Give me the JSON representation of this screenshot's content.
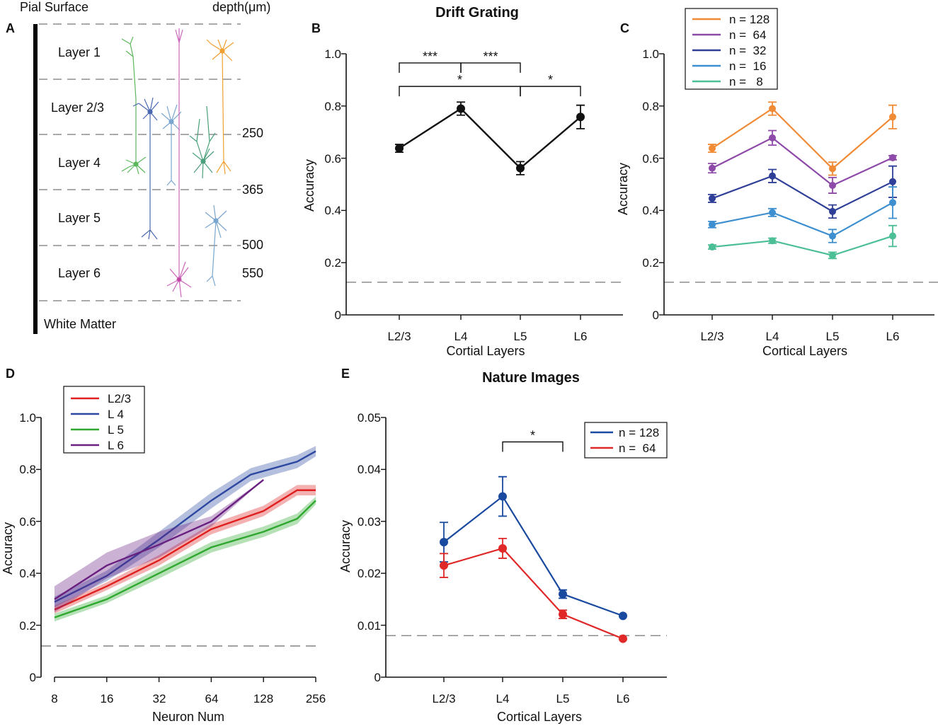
{
  "panel_labels": {
    "A": "A",
    "B": "B",
    "C": "C",
    "D": "D",
    "E": "E"
  },
  "panelA": {
    "pial": "Pial Surface",
    "depth_label": "depth(μm)",
    "white_matter": "White Matter",
    "layers": [
      "Layer 1",
      "Layer 2/3",
      "Layer 4",
      "Layer 5",
      "Layer 6"
    ],
    "depths": [
      "250",
      "365",
      "500",
      "550"
    ],
    "neuron_colors": {
      "green": "#5cb85c",
      "blue": "#4a68b0",
      "lightblue": "#79a6cf",
      "pink": "#cc66bb",
      "orange": "#f0a030",
      "teal": "#4aa07a",
      "magenta": "#c0449a"
    }
  },
  "chart_data": [
    {
      "id": "B",
      "type": "line",
      "title": "Drift Grating",
      "xlabel": "Cortial Layers",
      "ylabel": "Accuracy",
      "categories": [
        "L2/3",
        "L4",
        "L5",
        "L6"
      ],
      "ylim": [
        0,
        1.0
      ],
      "yticks": [
        0,
        0.2,
        0.4,
        0.6,
        0.8,
        1.0
      ],
      "ytick_labels": [
        "0",
        "0.2",
        "0.4",
        "0.6",
        "0.8",
        "1.0"
      ],
      "chance": 0.125,
      "series": [
        {
          "name": "accuracy",
          "color": "#111111",
          "values": [
            0.638,
            0.79,
            0.562,
            0.758
          ],
          "err": [
            0.015,
            0.025,
            0.025,
            0.045
          ]
        }
      ],
      "significance": [
        {
          "from": 0,
          "to": 1,
          "label": "***",
          "y": 0.965
        },
        {
          "from": 1,
          "to": 2,
          "label": "***",
          "y": 0.965
        },
        {
          "from": 0,
          "to": 2,
          "label": "*",
          "y": 0.875
        },
        {
          "from": 2,
          "to": 3,
          "label": "*",
          "y": 0.875
        }
      ]
    },
    {
      "id": "C",
      "type": "line",
      "xlabel": "Cortical Layers",
      "ylabel": "Accuracy",
      "categories": [
        "L2/3",
        "L4",
        "L5",
        "L6"
      ],
      "ylim": [
        0,
        1.0
      ],
      "yticks": [
        0,
        0.2,
        0.4,
        0.6,
        0.8,
        1.0
      ],
      "ytick_labels": [
        "0",
        "0.2",
        "0.4",
        "0.6",
        "0.8",
        "1.0"
      ],
      "chance": 0.125,
      "legend": "top-left",
      "series": [
        {
          "name": "n = 128",
          "color": "#f08a35",
          "values": [
            0.638,
            0.79,
            0.56,
            0.758
          ],
          "err": [
            0.015,
            0.025,
            0.025,
            0.045
          ]
        },
        {
          "name": "n =  64",
          "color": "#8e4aa8",
          "values": [
            0.562,
            0.678,
            0.496,
            0.602
          ],
          "err": [
            0.018,
            0.028,
            0.03,
            0.008
          ]
        },
        {
          "name": "n =  32",
          "color": "#2f3f98",
          "values": [
            0.446,
            0.532,
            0.396,
            0.51
          ],
          "err": [
            0.015,
            0.025,
            0.025,
            0.06
          ]
        },
        {
          "name": "n =  16",
          "color": "#3d8fd0",
          "values": [
            0.346,
            0.392,
            0.302,
            0.43
          ],
          "err": [
            0.012,
            0.015,
            0.025,
            0.06
          ]
        },
        {
          "name": "n =   8",
          "color": "#4cbf96",
          "values": [
            0.26,
            0.284,
            0.228,
            0.302
          ],
          "err": [
            0.008,
            0.01,
            0.012,
            0.04
          ]
        }
      ]
    },
    {
      "id": "D",
      "type": "line",
      "xlabel": "Neuron Num",
      "ylabel": "Accuracy",
      "x_scale": "log2",
      "xticks": [
        8,
        16,
        32,
        64,
        128,
        256
      ],
      "xtick_labels": [
        "8",
        "16",
        "32",
        "64",
        "128",
        "256"
      ],
      "ylim": [
        0,
        1.0
      ],
      "yticks": [
        0,
        0.2,
        0.4,
        0.6,
        0.8,
        1.0
      ],
      "ytick_labels": [
        "0",
        "0.2",
        "0.4",
        "0.6",
        "0.8",
        "1.0"
      ],
      "chance": 0.12,
      "legend": "top-left",
      "series": [
        {
          "name": "L2/3",
          "color": "#e02020",
          "x": [
            8,
            16,
            32,
            64,
            128,
            200,
            256
          ],
          "values": [
            0.26,
            0.35,
            0.45,
            0.57,
            0.64,
            0.72,
            0.72
          ],
          "err": [
            0.015,
            0.015,
            0.02,
            0.02,
            0.02,
            0.02,
            0.02
          ]
        },
        {
          "name": "L 4",
          "color": "#2c48a0",
          "x": [
            8,
            16,
            32,
            64,
            108,
            200,
            256
          ],
          "values": [
            0.29,
            0.39,
            0.53,
            0.68,
            0.78,
            0.83,
            0.87
          ],
          "err": [
            0.02,
            0.02,
            0.03,
            0.03,
            0.025,
            0.025,
            0.02
          ]
        },
        {
          "name": "L 5",
          "color": "#2ea82e",
          "x": [
            8,
            16,
            32,
            64,
            128,
            200,
            256
          ],
          "values": [
            0.23,
            0.3,
            0.4,
            0.5,
            0.56,
            0.61,
            0.68
          ],
          "err": [
            0.015,
            0.015,
            0.02,
            0.02,
            0.02,
            0.02,
            0.015
          ]
        },
        {
          "name": "L 6",
          "color": "#6a2080",
          "x": [
            8,
            16,
            32,
            64,
            128
          ],
          "values": [
            0.3,
            0.43,
            0.51,
            0.6,
            0.76
          ],
          "err": [
            0.05,
            0.05,
            0.05,
            0.02,
            0.0
          ]
        }
      ]
    },
    {
      "id": "E",
      "type": "line",
      "title": "Nature Images",
      "xlabel": "Cortical Layers",
      "ylabel": "Accuracy",
      "categories": [
        "L2/3",
        "L4",
        "L5",
        "L6"
      ],
      "ylim": [
        0,
        0.05
      ],
      "yticks": [
        0,
        0.01,
        0.02,
        0.03,
        0.04,
        0.05
      ],
      "ytick_labels": [
        "0",
        "0.01",
        "0.02",
        "0.03",
        "0.04",
        "0.05"
      ],
      "chance": 0.008,
      "legend": "top-right",
      "series": [
        {
          "name": "n = 128",
          "color": "#1a4a9f",
          "values": [
            0.026,
            0.0348,
            0.016,
            0.0118
          ],
          "err": [
            0.0038,
            0.0038,
            0.0008,
            0.0
          ]
        },
        {
          "name": "n =  64",
          "color": "#e02828",
          "values": [
            0.0215,
            0.0248,
            0.0121,
            0.0074
          ],
          "err": [
            0.0023,
            0.0019,
            0.0008,
            0.0
          ]
        }
      ],
      "significance": [
        {
          "from": 1,
          "to": 2,
          "label": "*",
          "y": 0.0453
        }
      ]
    }
  ]
}
